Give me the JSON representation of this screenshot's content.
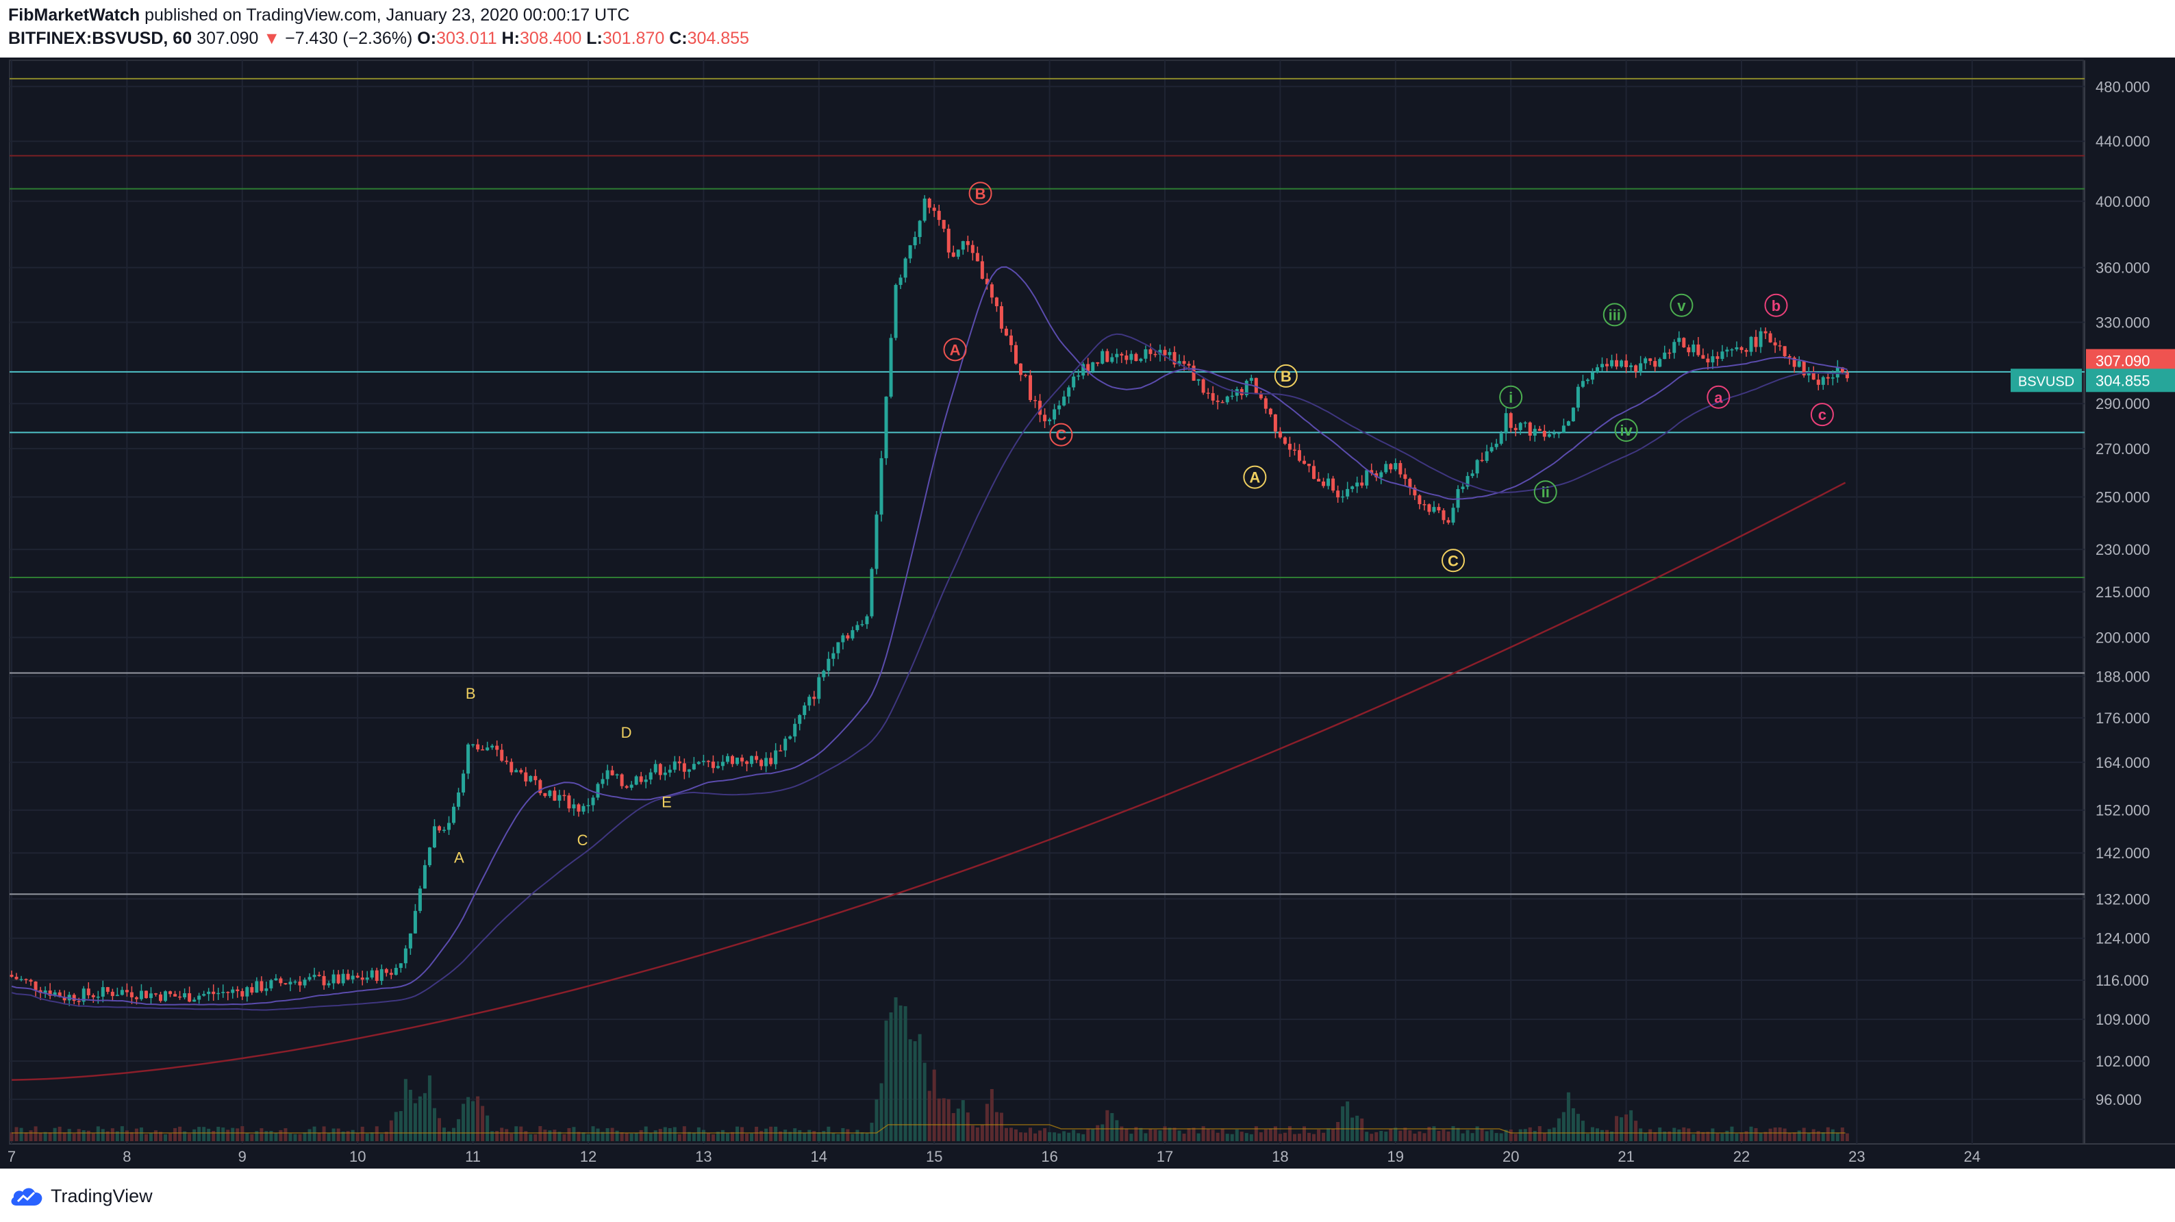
{
  "header": {
    "author": "FibMarketWatch",
    "published": "published on TradingView.com, January 23, 2020 00:00:17 UTC",
    "symbol": "BITFINEX:BSVUSD, 60",
    "last": "307.090",
    "change": "−7.430 (−2.36%)",
    "open_label": "O:",
    "open": "303.011",
    "high_label": "H:",
    "high": "308.400",
    "low_label": "L:",
    "low": "301.870",
    "close_label": "C:",
    "close": "304.855"
  },
  "footer": {
    "brand": "TradingView"
  },
  "colors": {
    "background": "#131722",
    "up": "#26a69a",
    "down": "#ef5350",
    "grid": "#1f2433",
    "axis_text": "#b2b5be",
    "ma_fast": "#4a3f8a",
    "ma_slow": "#8b1e2a",
    "hline_green": "#2e7d32",
    "hline_red": "#7a1f24",
    "hline_white": "#9598a1",
    "hline_cyan": "#4fc3c9",
    "hline_yellow": "#8d8a2a",
    "label_yellow": "#f0d060",
    "label_red": "#ef5350",
    "label_green": "#4caf50",
    "label_pink": "#ec407a"
  },
  "chart_data": {
    "type": "candlestick",
    "title": "",
    "xlabel": "",
    "ylabel": "",
    "y_scale": "log",
    "ylim": [
      91,
      495
    ],
    "x_tick_labels": [
      "7",
      "8",
      "9",
      "10",
      "11",
      "12",
      "13",
      "14",
      "15",
      "16",
      "17",
      "18",
      "19",
      "20",
      "21",
      "22",
      "23",
      "24"
    ],
    "y_tick_labels": [
      "480.000",
      "440.000",
      "400.000",
      "360.000",
      "330.000",
      "307.090",
      "290.000",
      "270.000",
      "250.000",
      "230.000",
      "215.000",
      "200.000",
      "188.000",
      "176.000",
      "164.000",
      "152.000",
      "142.000",
      "132.000",
      "124.000",
      "116.000",
      "109.000",
      "102.000",
      "96.000"
    ],
    "price_badges": [
      {
        "text": "307.090",
        "color": "#ef5350",
        "value": 307.09
      },
      {
        "text": "304.855",
        "color": "#26a69a",
        "value": 304.855,
        "symbol": "BSVUSD"
      }
    ],
    "horizontal_levels": [
      {
        "value": 486,
        "color": "hline_yellow"
      },
      {
        "value": 430,
        "color": "hline_red"
      },
      {
        "value": 408,
        "color": "hline_green"
      },
      {
        "value": 305,
        "color": "hline_cyan"
      },
      {
        "value": 277,
        "color": "hline_cyan"
      },
      {
        "value": 220,
        "color": "hline_green"
      },
      {
        "value": 189,
        "color": "hline_white"
      },
      {
        "value": 133,
        "color": "hline_white"
      }
    ],
    "price_path_days": [
      7,
      7.5,
      8,
      8.5,
      9,
      9.5,
      10,
      10.4,
      10.55,
      10.7,
      10.85,
      11,
      11.2,
      11.5,
      11.85,
      12,
      12.2,
      12.35,
      12.6,
      12.85,
      13,
      13.3,
      13.6,
      13.8,
      14,
      14.2,
      14.45,
      14.6,
      14.7,
      14.85,
      14.95,
      15.05,
      15.2,
      15.35,
      15.55,
      15.75,
      15.95,
      16.1,
      16.3,
      16.5,
      16.75,
      17,
      17.25,
      17.5,
      17.8,
      18,
      18.25,
      18.55,
      18.85,
      19.05,
      19.25,
      19.5,
      19.65,
      19.85,
      20,
      20.2,
      20.45,
      20.55,
      20.65,
      20.8,
      20.95,
      21.1,
      21.35,
      21.5,
      21.75,
      22,
      22.2,
      22.35,
      22.55,
      22.7,
      22.9
    ],
    "price_path_close": [
      117,
      113,
      114,
      113,
      114,
      116,
      116,
      118,
      130,
      148,
      149,
      168,
      167,
      160,
      154,
      152,
      161,
      158,
      162,
      163,
      163,
      165,
      164,
      172,
      183,
      200,
      204,
      275,
      350,
      375,
      400,
      390,
      368,
      375,
      340,
      312,
      285,
      285,
      305,
      312,
      312,
      318,
      306,
      288,
      300,
      280,
      262,
      252,
      260,
      264,
      248,
      242,
      258,
      268,
      283,
      278,
      278,
      284,
      300,
      305,
      310,
      306,
      312,
      322,
      310,
      315,
      322,
      320,
      307,
      300,
      305
    ],
    "volume_spike_days": [
      10.4,
      10.6,
      11,
      14.6,
      14.7,
      14.85,
      15,
      15.2,
      15.5,
      16.5,
      18.6,
      20.5,
      21
    ],
    "volume_spike_values": [
      0.35,
      0.55,
      0.45,
      0.6,
      1.0,
      0.7,
      0.4,
      0.3,
      0.25,
      0.15,
      0.28,
      0.22,
      0.2
    ],
    "ma_fast_note": "",
    "wave_labels": [
      {
        "text": "B",
        "day": 10.98,
        "value": 183,
        "color": "label_yellow",
        "circle": false
      },
      {
        "text": "A",
        "day": 10.88,
        "value": 141,
        "color": "label_yellow",
        "circle": false
      },
      {
        "text": "C",
        "day": 11.95,
        "value": 145,
        "color": "label_yellow",
        "circle": false
      },
      {
        "text": "D",
        "day": 12.33,
        "value": 172,
        "color": "label_yellow",
        "circle": false
      },
      {
        "text": "E",
        "day": 12.68,
        "value": 154,
        "color": "label_yellow",
        "circle": false
      },
      {
        "text": "B",
        "day": 15.4,
        "value": 405,
        "color": "label_red",
        "circle": true
      },
      {
        "text": "A",
        "day": 15.18,
        "value": 316,
        "color": "label_red",
        "circle": true
      },
      {
        "text": "C",
        "day": 16.1,
        "value": 276,
        "color": "label_red",
        "circle": true
      },
      {
        "text": "B",
        "day": 18.05,
        "value": 303,
        "color": "label_yellow",
        "circle": true
      },
      {
        "text": "A",
        "day": 17.78,
        "value": 258,
        "color": "label_yellow",
        "circle": true
      },
      {
        "text": "C",
        "day": 19.5,
        "value": 226,
        "color": "label_yellow",
        "circle": true
      },
      {
        "text": "i",
        "day": 20.0,
        "value": 293,
        "color": "label_green",
        "circle": true
      },
      {
        "text": "ii",
        "day": 20.3,
        "value": 252,
        "color": "label_green",
        "circle": true
      },
      {
        "text": "iii",
        "day": 20.9,
        "value": 334,
        "color": "label_green",
        "circle": true
      },
      {
        "text": "iv",
        "day": 21.0,
        "value": 278,
        "color": "label_green",
        "circle": true
      },
      {
        "text": "v",
        "day": 21.48,
        "value": 339,
        "color": "label_green",
        "circle": true
      },
      {
        "text": "b",
        "day": 22.3,
        "value": 339,
        "color": "label_pink",
        "circle": true
      },
      {
        "text": "a",
        "day": 21.8,
        "value": 293,
        "color": "label_pink",
        "circle": true
      },
      {
        "text": "c",
        "day": 22.7,
        "value": 285,
        "color": "label_pink",
        "circle": true
      }
    ]
  }
}
